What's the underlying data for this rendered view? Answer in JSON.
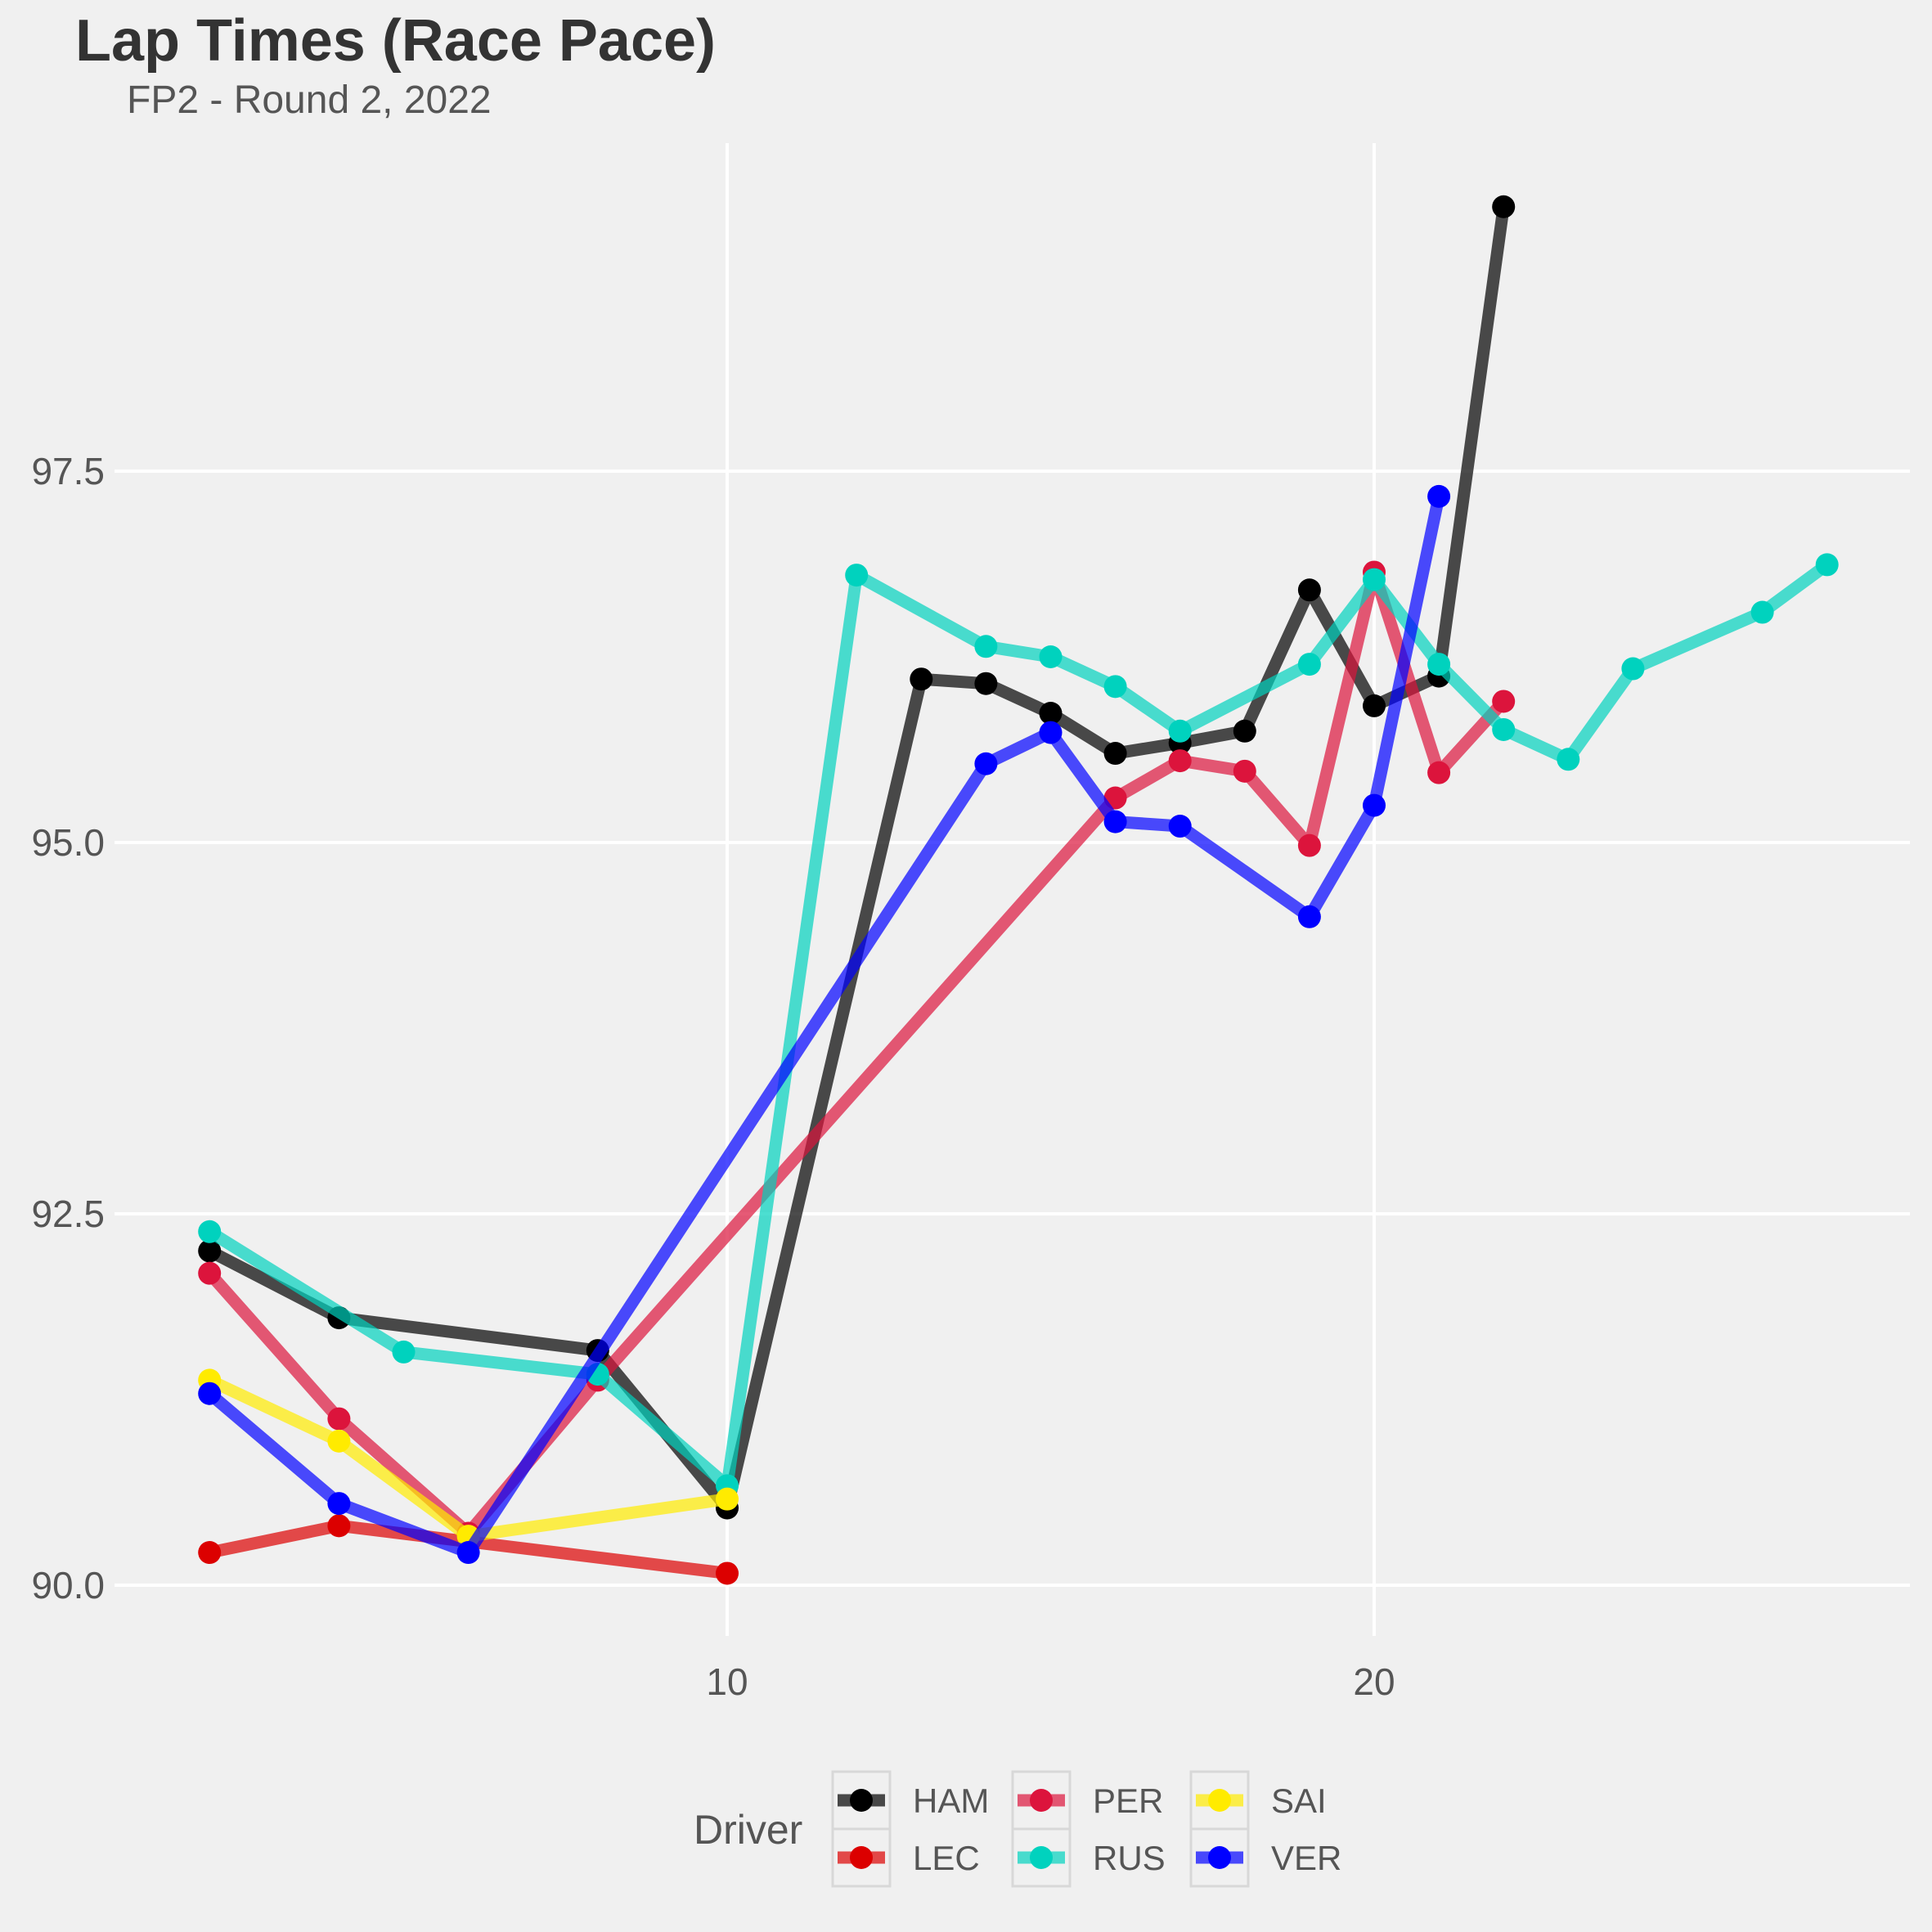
{
  "chart_data": {
    "type": "line",
    "title": "Lap Times (Race Pace)",
    "subtitle": "FP2 - Round 2, 2022",
    "xlabel": "",
    "ylabel": "",
    "xlim": [
      1,
      28
    ],
    "ylim": [
      89.75,
      98.75
    ],
    "x_ticks": [
      10,
      20
    ],
    "y_ticks": [
      90.0,
      92.5,
      95.0,
      97.5
    ],
    "x_tick_labels": [
      "10",
      "20"
    ],
    "y_tick_labels": [
      "90.0",
      "92.5",
      "95.0",
      "97.5"
    ],
    "grid": true,
    "legend": {
      "title": "Driver",
      "position": "bottom"
    },
    "series": [
      {
        "name": "HAM",
        "color": "#000000",
        "points": [
          [
            2,
            92.25
          ],
          [
            4,
            91.8
          ],
          [
            8,
            91.58
          ],
          [
            10,
            90.52
          ],
          [
            13,
            96.1
          ],
          [
            14,
            96.07
          ],
          [
            15,
            95.87
          ],
          [
            16,
            95.6
          ],
          [
            17,
            95.67
          ],
          [
            18,
            95.75
          ],
          [
            19,
            96.7
          ],
          [
            20,
            95.92
          ],
          [
            21,
            96.12
          ],
          [
            22,
            99.28
          ]
        ]
      },
      {
        "name": "LEC",
        "color": "#dc0000",
        "points": [
          [
            2,
            90.22
          ],
          [
            4,
            90.4
          ],
          [
            10,
            90.08
          ]
        ]
      },
      {
        "name": "PER",
        "color": "#dc143c",
        "points": [
          [
            2,
            92.1
          ],
          [
            4,
            91.12
          ],
          [
            6,
            90.35
          ],
          [
            8,
            91.38
          ],
          [
            16,
            95.3
          ],
          [
            17,
            95.55
          ],
          [
            18,
            95.48
          ],
          [
            19,
            94.98
          ],
          [
            20,
            96.82
          ],
          [
            21,
            95.47
          ],
          [
            22,
            95.95
          ]
        ]
      },
      {
        "name": "RUS",
        "color": "#00d2be",
        "points": [
          [
            2,
            92.38
          ],
          [
            5,
            91.57
          ],
          [
            8,
            91.42
          ],
          [
            10,
            90.67
          ],
          [
            12,
            96.8
          ],
          [
            14,
            96.32
          ],
          [
            15,
            96.25
          ],
          [
            16,
            96.05
          ],
          [
            17,
            95.75
          ],
          [
            19,
            96.2
          ],
          [
            20,
            96.77
          ],
          [
            21,
            96.2
          ],
          [
            22,
            95.76
          ],
          [
            23,
            95.56
          ],
          [
            24,
            96.17
          ],
          [
            26,
            96.55
          ],
          [
            27,
            96.87
          ]
        ]
      },
      {
        "name": "SAI",
        "color": "#ffeb00",
        "points": [
          [
            2,
            91.38
          ],
          [
            4,
            90.97
          ],
          [
            6,
            90.33
          ],
          [
            10,
            90.58
          ]
        ]
      },
      {
        "name": "VER",
        "color": "#0000ff",
        "points": [
          [
            2,
            91.29
          ],
          [
            4,
            90.55
          ],
          [
            6,
            90.22
          ],
          [
            14,
            95.53
          ],
          [
            15,
            95.74
          ],
          [
            16,
            95.14
          ],
          [
            17,
            95.11
          ],
          [
            19,
            94.5
          ],
          [
            20,
            95.25
          ],
          [
            21,
            97.33
          ]
        ]
      }
    ]
  }
}
